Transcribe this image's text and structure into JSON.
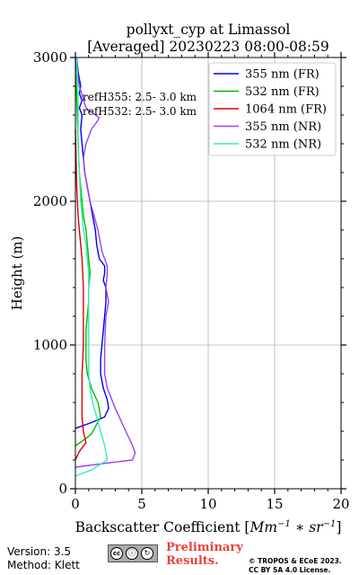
{
  "chart_data": {
    "type": "line",
    "title_line1": "pollyxt_cyp at Limassol",
    "title_line2": "[Averaged] 20230223 08:00-08:59",
    "xlabel_prefix": "Backscatter Coefficient [",
    "xlabel_math": "Mm",
    "xlabel_sup1": "−1",
    "xlabel_mid": " ∗ sr",
    "xlabel_sup2": "−1",
    "xlabel_suffix": "]",
    "ylabel": "Height (m)",
    "xlim": [
      0,
      20
    ],
    "ylim": [
      0,
      3000
    ],
    "xticks": [
      0,
      5,
      10,
      15,
      20
    ],
    "yticks": [
      0,
      1000,
      2000,
      3000
    ],
    "grid": true,
    "legend_position": "top-right",
    "annotations": [
      "refH355:  2.5- 3.0 km",
      "refH532:  2.5- 3.0 km"
    ],
    "series": [
      {
        "name": "355 nm (FR)",
        "color": "#0000ee",
        "x": [
          0,
          1.2,
          2.2,
          2.5,
          2.4,
          2.1,
          1.9,
          1.9,
          2.0,
          2.1,
          2.2,
          2.3,
          2.3,
          2.1,
          2.2,
          2.2,
          1.8,
          1.6,
          1.5,
          1.3,
          1.1,
          0.9,
          0.7,
          0.6,
          0.5,
          0.4,
          0.5,
          0.3,
          0.5,
          0.3,
          0.4,
          0.2,
          0.1
        ],
        "y": [
          420,
          460,
          500,
          560,
          620,
          700,
          800,
          900,
          1000,
          1100,
          1200,
          1300,
          1400,
          1450,
          1500,
          1550,
          1600,
          1700,
          1800,
          1900,
          2000,
          2100,
          2200,
          2300,
          2400,
          2500,
          2600,
          2650,
          2700,
          2750,
          2800,
          2900,
          3000
        ]
      },
      {
        "name": "532 nm (FR)",
        "color": "#00bb00",
        "x": [
          0,
          0.5,
          1.2,
          1.9,
          1.7,
          1.2,
          0.9,
          0.8,
          0.8,
          0.8,
          0.9,
          1.0,
          1.0,
          1.1,
          1.0,
          0.9,
          0.8,
          0.6,
          0.5,
          0.4,
          0.3,
          0.2,
          0.1,
          0.0
        ],
        "y": [
          300,
          330,
          380,
          500,
          600,
          700,
          800,
          900,
          1000,
          1100,
          1200,
          1300,
          1400,
          1500,
          1600,
          1700,
          1800,
          1900,
          2000,
          2100,
          2200,
          2400,
          2700,
          3000
        ]
      },
      {
        "name": "1064 nm (FR)",
        "color": "#dd0000",
        "x": [
          0,
          0.3,
          0.8,
          0.6,
          0.5,
          0.5,
          0.5,
          0.6,
          0.6,
          0.6,
          0.5,
          0.4,
          0.3,
          0.2,
          0.1,
          0.0
        ],
        "y": [
          200,
          260,
          320,
          400,
          500,
          600,
          800,
          1000,
          1200,
          1400,
          1600,
          1700,
          1800,
          1900,
          2100,
          2500
        ]
      },
      {
        "name": "355 nm (NR)",
        "color": "#9b40ee",
        "x": [
          0,
          2.5,
          4.3,
          4.5,
          4.3,
          3.8,
          3.0,
          2.4,
          2.2,
          2.2,
          2.3,
          2.5,
          2.3,
          2.4,
          2.4,
          2.0,
          1.7,
          1.4,
          1.1,
          0.9,
          0.7,
          0.6,
          0.8,
          1.2,
          1.6,
          1.8,
          0.8,
          0.3,
          0.0
        ],
        "y": [
          150,
          180,
          200,
          250,
          300,
          400,
          560,
          700,
          800,
          1000,
          1200,
          1300,
          1400,
          1500,
          1550,
          1650,
          1800,
          1900,
          2000,
          2100,
          2200,
          2300,
          2400,
          2500,
          2550,
          2580,
          2650,
          2800,
          3000
        ]
      },
      {
        "name": "532 nm (NR)",
        "color": "#33eebb",
        "x": [
          0,
          1.2,
          2.4,
          2.2,
          1.9,
          1.6,
          1.3,
          1.1,
          1.0,
          1.0,
          1.0,
          1.0,
          1.0,
          0.9,
          0.8,
          0.6,
          0.5,
          0.4,
          0.3,
          0.2,
          0.2,
          0.1
        ],
        "y": [
          90,
          130,
          200,
          300,
          400,
          500,
          600,
          700,
          800,
          1000,
          1200,
          1400,
          1500,
          1600,
          1700,
          1800,
          1900,
          2000,
          2200,
          2400,
          2700,
          3000
        ]
      }
    ]
  },
  "footer": {
    "version": "Version: 3.5",
    "method": "Method: Klett",
    "preliminary": "Preliminary Results.",
    "copyright_line1": "© TROPOS & ECoE 2023.",
    "copyright_line2": "CC BY SA 4.0 License."
  }
}
